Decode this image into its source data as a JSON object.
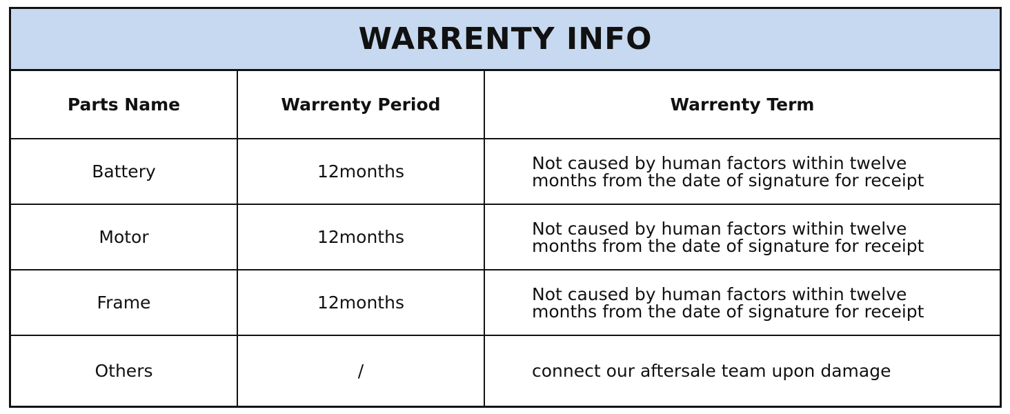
{
  "title": "WARRENTY INFO",
  "columns": [
    "Parts Name",
    "Warrenty Period",
    "Warrenty Term"
  ],
  "rows": [
    {
      "part": "Battery",
      "period": "12months",
      "term_line1": "Not caused by human factors within twelve",
      "term_line2": "months from the date of signature for receipt"
    },
    {
      "part": "Motor",
      "period": "12months",
      "term_line1": "Not caused by human factors within twelve",
      "term_line2": "months from the date of signature for receipt"
    },
    {
      "part": "Frame",
      "period": "12months",
      "term_line1": "Not caused by human factors within twelve",
      "term_line2": "months from the date of signature for receipt"
    },
    {
      "part": "Others",
      "period": "/",
      "term_line1": "connect our aftersale team upon damage",
      "term_line2": ""
    }
  ],
  "colors": {
    "header_fill": "#c6d9f0",
    "border": "#111111"
  }
}
